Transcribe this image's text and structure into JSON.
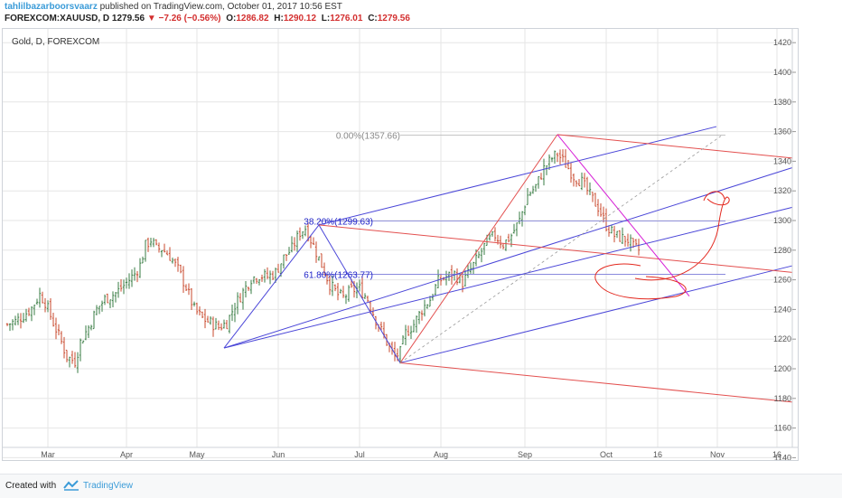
{
  "header": {
    "author": "tahlilbazarboorsvaarz",
    "published_text": "published on TradingView.com, October 01, 2017 10:56 EST",
    "symbol": "FOREXCOM:XAUUSD, D",
    "price": "1279.56",
    "change_arrow": "▼",
    "change": "−7.26 (−0.56%)",
    "o_label": "O:",
    "o_value": "1286.82",
    "h_label": "H:",
    "h_value": "1290.12",
    "l_label": "L:",
    "l_value": "1276.01",
    "c_label": "C:",
    "c_value": "1279.56"
  },
  "chart_title": "Gold, D, FOREXCOM",
  "footer": {
    "created_with": "Created with",
    "brand": "TradingView"
  },
  "colors": {
    "up": "#3a7d44",
    "down": "#c8492d",
    "fib": "#1e22c8",
    "grid": "#e6e6e6",
    "pitchfork_blue": "#4a46d8",
    "pitchfork_red": "#e3504f",
    "magenta": "#d61fd6",
    "annotation": "#e3281e"
  },
  "chart_data": {
    "type": "candlestick",
    "ylim": [
      1130,
      1425
    ],
    "y_ticks": [
      1140,
      1160,
      1180,
      1200,
      1220,
      1240,
      1260,
      1280,
      1300,
      1320,
      1340,
      1360,
      1380,
      1400,
      1420
    ],
    "x_ticks": [
      {
        "label": "Mar",
        "x": 15
      },
      {
        "label": "Apr",
        "x": 44
      },
      {
        "label": "May",
        "x": 70
      },
      {
        "label": "Jun",
        "x": 100
      },
      {
        "label": "Jul",
        "x": 130
      },
      {
        "label": "Aug",
        "x": 160
      },
      {
        "label": "Sep",
        "x": 191
      },
      {
        "label": "Oct",
        "x": 221
      },
      {
        "label": "16",
        "x": 240
      },
      {
        "label": "Nov",
        "x": 262
      },
      {
        "label": "16",
        "x": 284
      }
    ],
    "fib_levels": [
      {
        "label": "0.00%(1357.66)",
        "value": 1357.66
      },
      {
        "label": "38.20%(1299.63)",
        "value": 1299.63
      },
      {
        "label": "61.80%(1263.77)",
        "value": 1263.77
      }
    ],
    "pivots": [
      {
        "name": "low",
        "x": 80,
        "price": 1214
      },
      {
        "name": "high",
        "x": 115,
        "price": 1297
      },
      {
        "name": "low",
        "x": 145,
        "price": 1204
      },
      {
        "name": "high",
        "x": 203,
        "price": 1358
      }
    ],
    "price_path": [
      [
        0,
        1230
      ],
      [
        3,
        1232
      ],
      [
        6,
        1236
      ],
      [
        9,
        1241
      ],
      [
        12,
        1250
      ],
      [
        14,
        1245
      ],
      [
        17,
        1231
      ],
      [
        20,
        1218
      ],
      [
        22,
        1208
      ],
      [
        25,
        1205
      ],
      [
        27,
        1218
      ],
      [
        30,
        1228
      ],
      [
        33,
        1240
      ],
      [
        36,
        1247
      ],
      [
        40,
        1251
      ],
      [
        44,
        1258
      ],
      [
        47,
        1264
      ],
      [
        49,
        1270
      ],
      [
        51,
        1283
      ],
      [
        53,
        1287
      ],
      [
        55,
        1281
      ],
      [
        57,
        1281
      ],
      [
        60,
        1276
      ],
      [
        63,
        1267
      ],
      [
        66,
        1255
      ],
      [
        69,
        1240
      ],
      [
        72,
        1234
      ],
      [
        75,
        1231
      ],
      [
        78,
        1228
      ],
      [
        81,
        1231
      ],
      [
        84,
        1243
      ],
      [
        87,
        1252
      ],
      [
        90,
        1261
      ],
      [
        93,
        1263
      ],
      [
        96,
        1262
      ],
      [
        99,
        1265
      ],
      [
        102,
        1275
      ],
      [
        105,
        1281
      ],
      [
        108,
        1292
      ],
      [
        110,
        1295
      ],
      [
        113,
        1283
      ],
      [
        116,
        1270
      ],
      [
        119,
        1257
      ],
      [
        122,
        1250
      ],
      [
        124,
        1248
      ],
      [
        127,
        1253
      ],
      [
        130,
        1254
      ],
      [
        133,
        1247
      ],
      [
        136,
        1233
      ],
      [
        139,
        1222
      ],
      [
        141,
        1214
      ],
      [
        143,
        1208
      ],
      [
        145,
        1211
      ],
      [
        147,
        1224
      ],
      [
        150,
        1230
      ],
      [
        153,
        1240
      ],
      [
        156,
        1247
      ],
      [
        159,
        1259
      ],
      [
        162,
        1262
      ],
      [
        165,
        1264
      ],
      [
        168,
        1258
      ],
      [
        171,
        1267
      ],
      [
        174,
        1276
      ],
      [
        177,
        1286
      ],
      [
        180,
        1290
      ],
      [
        183,
        1284
      ],
      [
        186,
        1290
      ],
      [
        189,
        1300
      ],
      [
        192,
        1317
      ],
      [
        195,
        1323
      ],
      [
        198,
        1335
      ],
      [
        201,
        1342
      ],
      [
        203,
        1345
      ],
      [
        206,
        1338
      ],
      [
        209,
        1330
      ],
      [
        212,
        1326
      ],
      [
        215,
        1317
      ],
      [
        218,
        1309
      ],
      [
        221,
        1297
      ],
      [
        224,
        1290
      ],
      [
        227,
        1288
      ],
      [
        229,
        1287
      ],
      [
        231,
        1282
      ],
      [
        233,
        1280
      ]
    ]
  }
}
